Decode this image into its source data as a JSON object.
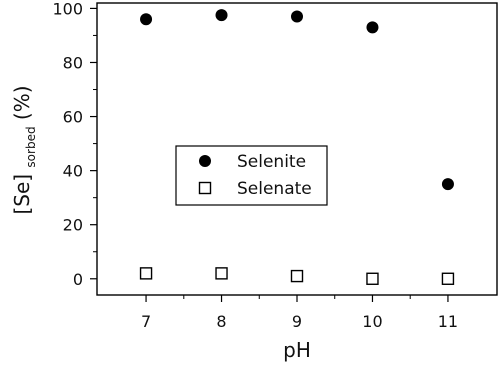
{
  "chart_data": {
    "type": "scatter",
    "xlabel": "pH",
    "ylabel": {
      "main": "[Se]",
      "subscript": "sorbed",
      "suffix": " (%)"
    },
    "xlim": [
      6.35,
      11.65
    ],
    "ylim": [
      -6,
      102
    ],
    "xticks": [
      "7",
      "8",
      "9",
      "10",
      "11"
    ],
    "yticks": [
      "0",
      "20",
      "40",
      "60",
      "80",
      "100"
    ],
    "legend_position": "middle-left",
    "series": [
      {
        "name": "Selenite",
        "marker": "filled-circle",
        "color": "#000000",
        "points": [
          [
            7,
            96
          ],
          [
            8,
            97.5
          ],
          [
            9,
            97
          ],
          [
            10,
            93
          ],
          [
            11,
            35
          ]
        ]
      },
      {
        "name": "Selenate",
        "marker": "open-square",
        "color": "#000000",
        "points": [
          [
            7,
            2
          ],
          [
            8,
            2
          ],
          [
            9,
            1
          ],
          [
            10,
            0
          ],
          [
            11,
            0
          ]
        ]
      }
    ]
  }
}
